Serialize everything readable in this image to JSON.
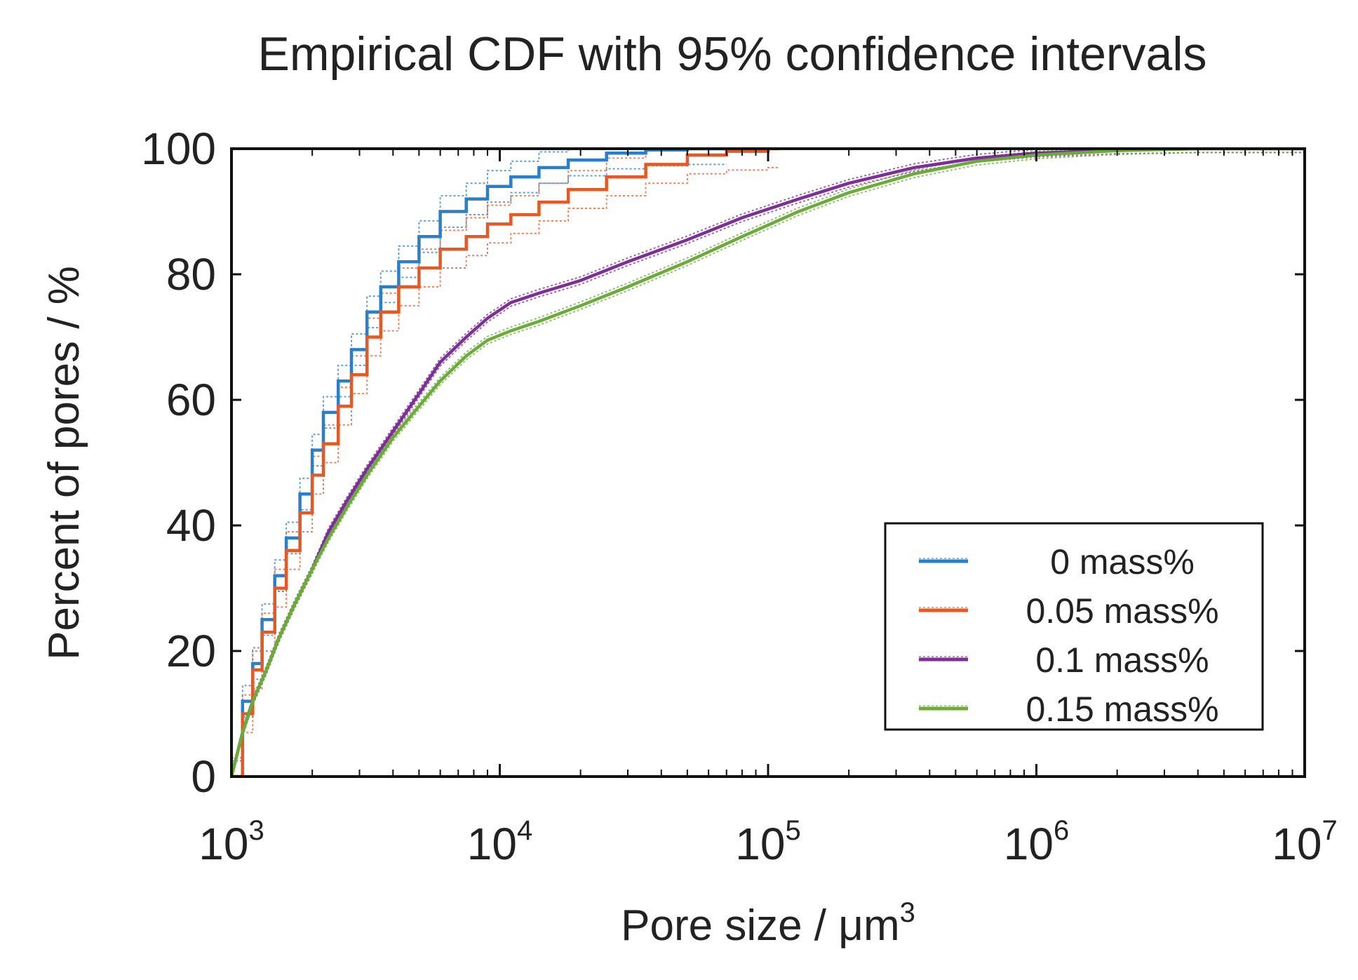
{
  "chart_data": {
    "type": "line",
    "title": "Empirical CDF with 95% confidence intervals",
    "xlabel_main": "Pore size / μm",
    "xlabel_sup": "3",
    "ylabel": "Percent of pores / %",
    "xscale": "log",
    "xlim": [
      1000,
      10000000
    ],
    "ylim": [
      0,
      100
    ],
    "x_ticks": [
      {
        "base": "10",
        "exp": "3",
        "value": 1000
      },
      {
        "base": "10",
        "exp": "4",
        "value": 10000
      },
      {
        "base": "10",
        "exp": "5",
        "value": 100000
      },
      {
        "base": "10",
        "exp": "6",
        "value": 1000000
      },
      {
        "base": "10",
        "exp": "7",
        "value": 10000000
      }
    ],
    "y_ticks": [
      0,
      20,
      40,
      60,
      80,
      100
    ],
    "y_tick_labels": [
      "0",
      "20",
      "40",
      "60",
      "80",
      "100"
    ],
    "legend_position": "bottom-right",
    "series": [
      {
        "name": "0 mass%",
        "color": "#2a7fc7",
        "stepped": true,
        "ci_width": 2.5,
        "x": [
          1000,
          1100,
          1200,
          1300,
          1450,
          1600,
          1800,
          2000,
          2200,
          2500,
          2800,
          3200,
          3600,
          4200,
          5000,
          6000,
          7500,
          9000,
          11000,
          14000,
          18000,
          25000,
          35000,
          50000,
          70000
        ],
        "y": [
          0,
          12,
          18,
          25,
          32,
          38,
          45,
          52,
          58,
          63,
          68,
          74,
          78,
          82,
          86,
          90,
          92,
          94,
          95.5,
          97,
          98.2,
          99.3,
          99.8,
          100,
          100
        ]
      },
      {
        "name": "0.05 mass%",
        "color": "#e35a26",
        "stepped": true,
        "ci_width": 3,
        "x": [
          1000,
          1100,
          1200,
          1300,
          1450,
          1600,
          1800,
          2000,
          2200,
          2500,
          2800,
          3200,
          3600,
          4200,
          5000,
          6000,
          7500,
          9000,
          11000,
          14000,
          18000,
          25000,
          35000,
          50000,
          70000,
          100000,
          110000
        ],
        "y": [
          0,
          10,
          17,
          23,
          30,
          36,
          42,
          48,
          53,
          59,
          64,
          70,
          74,
          78,
          81,
          84,
          86,
          88,
          89.5,
          91.5,
          93.5,
          95.5,
          97.5,
          99,
          99.6,
          100,
          100
        ]
      },
      {
        "name": "0.1 mass%",
        "color": "#7e2f96",
        "stepped": false,
        "ci_width": 0.6,
        "x": [
          1000,
          1100,
          1200,
          1350,
          1500,
          1700,
          2000,
          2300,
          2700,
          3200,
          4000,
          5000,
          6000,
          7500,
          9000,
          11000,
          14000,
          20000,
          30000,
          50000,
          80000,
          130000,
          200000,
          350000,
          600000,
          1000000,
          2000000,
          4000000,
          10000000
        ],
        "y": [
          0,
          7,
          12,
          17,
          22,
          27,
          33,
          39,
          44,
          49,
          55,
          61,
          66,
          70,
          73,
          75.5,
          77,
          79,
          82,
          85.5,
          89,
          92,
          94.5,
          97,
          98.5,
          99.3,
          99.8,
          100,
          100
        ]
      },
      {
        "name": "0.15 mass%",
        "color": "#6bab3a",
        "stepped": false,
        "ci_width": 0.6,
        "x": [
          1000,
          1100,
          1200,
          1350,
          1500,
          1700,
          2000,
          2300,
          2700,
          3200,
          4000,
          5000,
          6000,
          7500,
          9000,
          11000,
          14000,
          20000,
          30000,
          50000,
          80000,
          130000,
          200000,
          350000,
          600000,
          1000000,
          2000000,
          4000000,
          10000000
        ],
        "y": [
          0,
          7,
          12,
          17,
          22,
          27,
          33,
          38,
          43,
          48,
          54,
          59,
          63,
          67,
          69.5,
          71,
          72.5,
          75,
          78,
          82,
          86,
          90,
          93,
          96,
          98,
          99,
          99.7,
          100,
          100
        ]
      }
    ]
  }
}
